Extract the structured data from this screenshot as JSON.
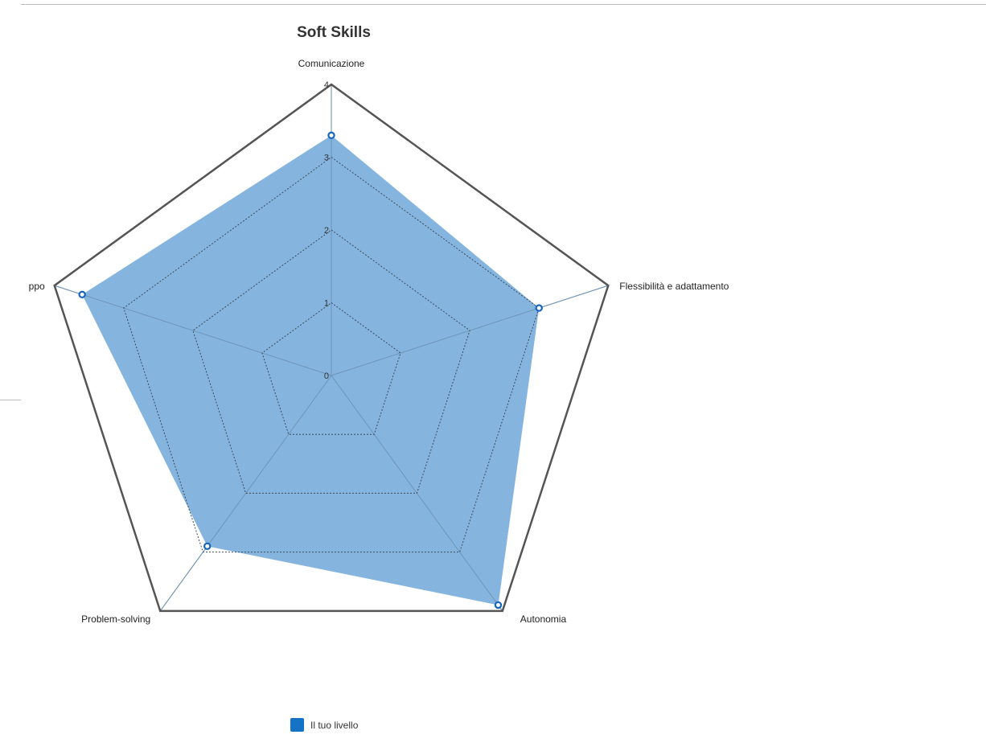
{
  "chart_data": {
    "type": "radar",
    "title": "Soft Skills",
    "axes": [
      "Comunicazione",
      "Flessibilità e adattamento",
      "Autonomia",
      "Problem-solving",
      "Lavoro di gruppo"
    ],
    "visible_axis_labels": [
      "Comunicazione",
      "Flessibilità e adattamento",
      "Autonomia",
      "Problem-solving",
      "ppo"
    ],
    "scale": {
      "min": 0,
      "max": 4,
      "ticks": [
        "0",
        "1",
        "2",
        "3",
        "4"
      ]
    },
    "series": [
      {
        "name": "Il tuo livello",
        "values": [
          3.3,
          3.0,
          3.9,
          2.9,
          3.6
        ]
      }
    ],
    "legend": "bottom",
    "gridlines": "dotted"
  },
  "colors": {
    "fill": "#85b5df",
    "stroke": "#1565c0",
    "legend": "#1573c6"
  }
}
